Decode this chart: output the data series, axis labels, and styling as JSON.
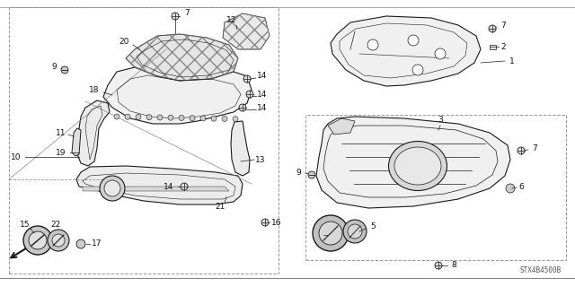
{
  "diagram_id": "STX4B4500B",
  "bg": "#ffffff",
  "lc": "#1a1a1a",
  "tc": "#1a1a1a",
  "figsize": [
    6.4,
    3.2
  ],
  "dpi": 100
}
